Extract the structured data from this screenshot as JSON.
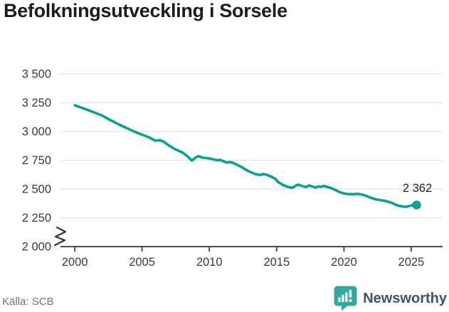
{
  "title": "Befolkningsutveckling i Sorsele",
  "footer": {
    "source": "Källa: SCB",
    "brand": "Newsworthy"
  },
  "logo": {
    "icon": "speech-bubble-with-bar-chart-and-exclamation",
    "icon_color": "#35a79f",
    "glyph_color": "#ffffff",
    "text_color": "#3b5666"
  },
  "chart_data": {
    "type": "line",
    "title": "Befolkningsutveckling i Sorsele",
    "xlabel": "",
    "ylabel": "",
    "xlim": [
      1998.94,
      2027.33
    ],
    "ylim": [
      2000,
      3500
    ],
    "axis_break_at_bottom": true,
    "grid": "horizontal",
    "legend": "none",
    "yticks": [
      {
        "value": 3500,
        "label": "3 500"
      },
      {
        "value": 3250,
        "label": "3 250"
      },
      {
        "value": 3000,
        "label": "3 000"
      },
      {
        "value": 2750,
        "label": "2 750"
      },
      {
        "value": 2500,
        "label": "2 500"
      },
      {
        "value": 2250,
        "label": "2 250"
      },
      {
        "value": 2000,
        "label": "2 000"
      }
    ],
    "xticks": [
      2000,
      2005,
      2010,
      2015,
      2020,
      2025
    ],
    "colors": {
      "line": "#0aa093",
      "grid": "#e3e3e3",
      "axis": "#4d4d4d",
      "tick_text": "#3a3a3a",
      "end_label": "#222222",
      "break_glyph": "#333333"
    },
    "series": [
      {
        "name": "Befolkning i Sorsele",
        "color": "#0aa093",
        "points": [
          [
            2000.0,
            3228
          ],
          [
            2000.5,
            3206
          ],
          [
            2001.0,
            3185
          ],
          [
            2001.5,
            3163
          ],
          [
            2002.0,
            3140
          ],
          [
            2002.5,
            3108
          ],
          [
            2003.0,
            3078
          ],
          [
            2003.5,
            3048
          ],
          [
            2004.0,
            3022
          ],
          [
            2004.5,
            2995
          ],
          [
            2005.0,
            2972
          ],
          [
            2005.5,
            2950
          ],
          [
            2006.0,
            2920
          ],
          [
            2006.3,
            2926
          ],
          [
            2006.6,
            2912
          ],
          [
            2007.0,
            2878
          ],
          [
            2007.5,
            2843
          ],
          [
            2008.0,
            2818
          ],
          [
            2008.4,
            2782
          ],
          [
            2008.7,
            2747
          ],
          [
            2009.0,
            2775
          ],
          [
            2009.2,
            2785
          ],
          [
            2009.5,
            2773
          ],
          [
            2010.0,
            2766
          ],
          [
            2010.3,
            2758
          ],
          [
            2010.6,
            2750
          ],
          [
            2010.8,
            2754
          ],
          [
            2011.0,
            2743
          ],
          [
            2011.3,
            2730
          ],
          [
            2011.6,
            2734
          ],
          [
            2012.0,
            2715
          ],
          [
            2012.4,
            2690
          ],
          [
            2012.8,
            2662
          ],
          [
            2013.0,
            2651
          ],
          [
            2013.4,
            2630
          ],
          [
            2013.8,
            2622
          ],
          [
            2014.0,
            2631
          ],
          [
            2014.3,
            2622
          ],
          [
            2014.6,
            2608
          ],
          [
            2014.9,
            2588
          ],
          [
            2015.1,
            2562
          ],
          [
            2015.4,
            2540
          ],
          [
            2015.7,
            2524
          ],
          [
            2016.0,
            2514
          ],
          [
            2016.2,
            2512
          ],
          [
            2016.4,
            2528
          ],
          [
            2016.6,
            2538
          ],
          [
            2016.8,
            2530
          ],
          [
            2017.0,
            2523
          ],
          [
            2017.2,
            2518
          ],
          [
            2017.4,
            2531
          ],
          [
            2017.7,
            2521
          ],
          [
            2017.9,
            2513
          ],
          [
            2018.1,
            2523
          ],
          [
            2018.3,
            2519
          ],
          [
            2018.5,
            2528
          ],
          [
            2018.7,
            2520
          ],
          [
            2018.9,
            2514
          ],
          [
            2019.1,
            2506
          ],
          [
            2019.4,
            2490
          ],
          [
            2019.7,
            2472
          ],
          [
            2020.0,
            2462
          ],
          [
            2020.3,
            2457
          ],
          [
            2020.7,
            2455
          ],
          [
            2021.0,
            2459
          ],
          [
            2021.3,
            2453
          ],
          [
            2021.6,
            2444
          ],
          [
            2022.0,
            2424
          ],
          [
            2022.4,
            2410
          ],
          [
            2022.8,
            2402
          ],
          [
            2023.1,
            2396
          ],
          [
            2023.4,
            2386
          ],
          [
            2023.7,
            2372
          ],
          [
            2024.0,
            2357
          ],
          [
            2024.3,
            2350
          ],
          [
            2024.6,
            2345
          ],
          [
            2024.9,
            2355
          ],
          [
            2025.1,
            2360
          ],
          [
            2025.4,
            2362
          ]
        ]
      }
    ],
    "end_point": [
      2025.4,
      2362
    ],
    "end_label": "2 362"
  }
}
